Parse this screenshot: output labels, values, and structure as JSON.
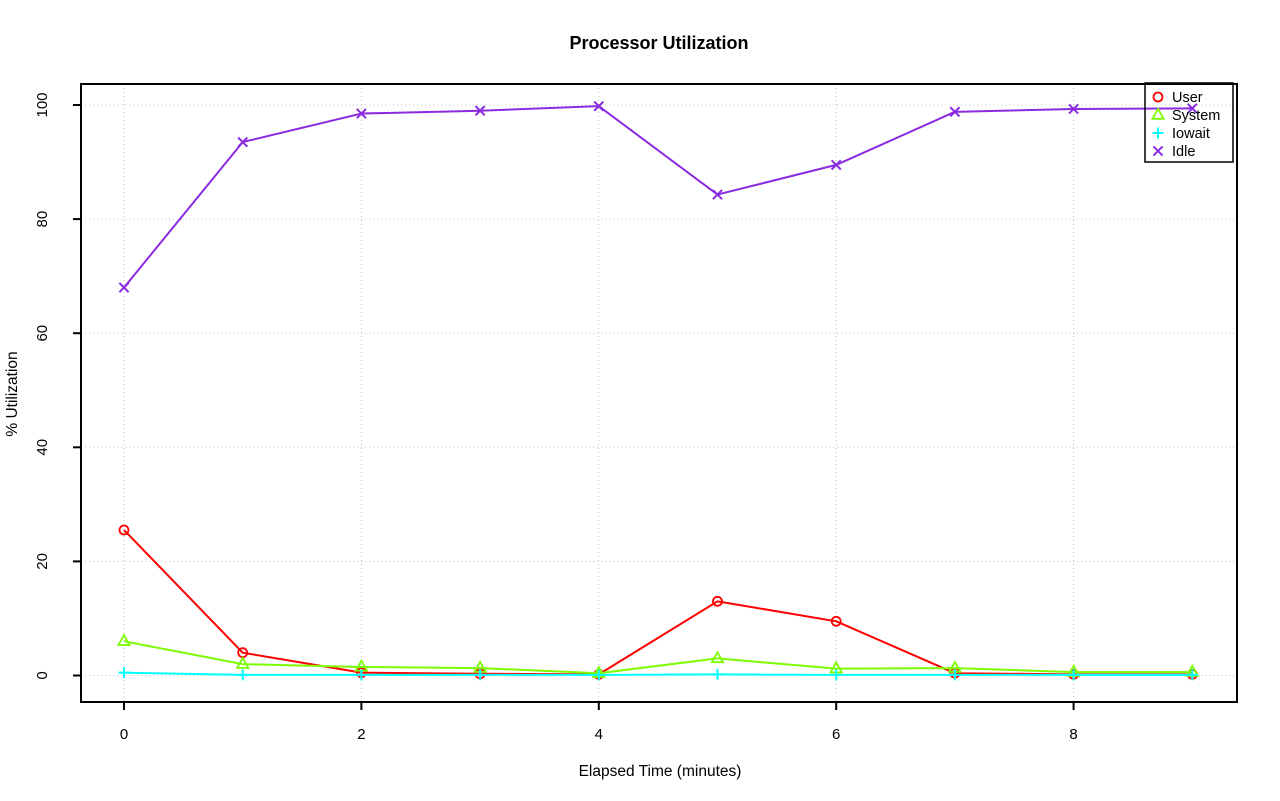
{
  "chart_data": {
    "type": "line",
    "title": "Processor Utilization",
    "xlabel": "Elapsed Time (minutes)",
    "ylabel": "% Utilization",
    "x": [
      0,
      1,
      2,
      3,
      4,
      5,
      6,
      7,
      8,
      9
    ],
    "x_ticks": [
      0,
      2,
      4,
      6,
      8
    ],
    "y_ticks": [
      0,
      20,
      40,
      60,
      80,
      100
    ],
    "xlim": [
      0,
      9
    ],
    "ylim": [
      0,
      100
    ],
    "grid": "dotted",
    "grid_color": "#c4c4c4",
    "legend_position": "topright",
    "series": [
      {
        "name": "User",
        "color": "#ff0000",
        "marker": "circle",
        "values": [
          25.5,
          4,
          0.5,
          0.3,
          0.2,
          13,
          9.5,
          0.4,
          0.2,
          0.2
        ]
      },
      {
        "name": "System",
        "color": "#7cfc00",
        "marker": "triangle",
        "values": [
          6,
          2,
          1.5,
          1.3,
          0.4,
          3,
          1.2,
          1.3,
          0.6,
          0.6
        ]
      },
      {
        "name": "Iowait",
        "color": "#00ffff",
        "marker": "plus",
        "values": [
          0.5,
          0.1,
          0.1,
          0.1,
          0.1,
          0.2,
          0.1,
          0.1,
          0.1,
          0.1
        ]
      },
      {
        "name": "Idle",
        "color": "#8a2be2",
        "marker": "x",
        "values": [
          68,
          93.5,
          98.5,
          99,
          99.8,
          84.3,
          89.5,
          98.8,
          99.3,
          99.4
        ]
      }
    ]
  }
}
